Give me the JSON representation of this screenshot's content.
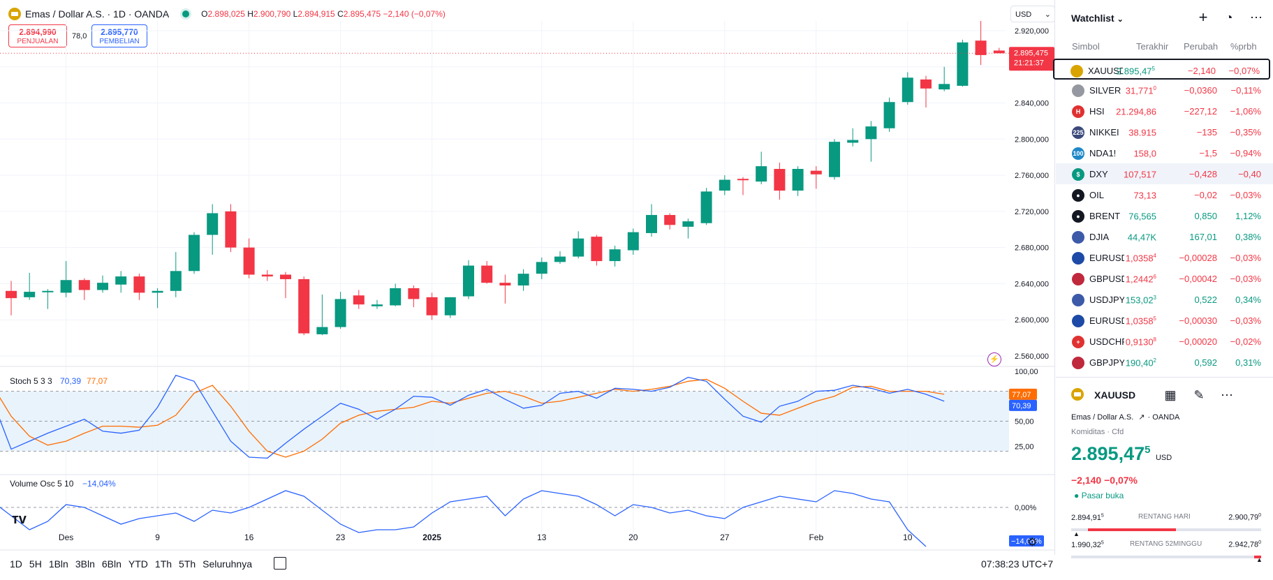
{
  "header": {
    "symbol_title": "Emas / Dollar A.S. · 1D · OANDA",
    "ohlc": {
      "o_label": "O",
      "o": "2.898,025",
      "h_label": "H",
      "h": "2.900,790",
      "l_label": "L",
      "l": "2.894,915",
      "c_label": "C",
      "c": "2.895,475",
      "chg": "−2,140 (−0,07%)"
    },
    "currency": "USD"
  },
  "trade": {
    "sell_price": "2.894,990",
    "sell_label": "PENJUALAN",
    "spread": "78,0",
    "buy_price": "2.895,770",
    "buy_label": "PEMBELIAN"
  },
  "price_axis": [
    "2.920,000",
    "2.880,000",
    "2.840,000",
    "2.800,000",
    "2.760,000",
    "2.720,000",
    "2.680,000",
    "2.640,000",
    "2.600,000",
    "2.560,000"
  ],
  "last_price": {
    "value": "2.895,475",
    "countdown": "21:21:37"
  },
  "stoch": {
    "title": "Stoch 5 3 3",
    "k": "70,39",
    "d": "77,07",
    "axis": [
      "100,00",
      "50,00",
      "25,00"
    ],
    "k_badge": "70,39",
    "d_badge": "77,07"
  },
  "volosc": {
    "title": "Volume Osc 5 10",
    "value": "−14,04%",
    "axis": "0,00%",
    "badge": "−14,04%"
  },
  "time_axis": [
    {
      "t": "Des",
      "i": 3
    },
    {
      "t": "9",
      "i": 8
    },
    {
      "t": "16",
      "i": 13
    },
    {
      "t": "23",
      "i": 18
    },
    {
      "t": "2025",
      "i": 23
    },
    {
      "t": "13",
      "i": 29
    },
    {
      "t": "20",
      "i": 34
    },
    {
      "t": "27",
      "i": 39
    },
    {
      "t": "Feb",
      "i": 44
    },
    {
      "t": "10",
      "i": 49
    }
  ],
  "timeframes": [
    "1D",
    "5H",
    "1Bln",
    "3Bln",
    "6Bln",
    "YTD",
    "1Th",
    "5Th",
    "Seluruhnya"
  ],
  "clock": "07:38:23 UTC+7",
  "chart_data": {
    "type": "candlestick",
    "ylim": [
      2560,
      2930
    ],
    "candles": [
      [
        2632,
        2643,
        2605,
        2624
      ],
      [
        2625,
        2652,
        2622,
        2631
      ],
      [
        2631,
        2634,
        2612,
        2632
      ],
      [
        2630,
        2665,
        2625,
        2644
      ],
      [
        2644,
        2646,
        2622,
        2633
      ],
      [
        2633,
        2649,
        2630,
        2641
      ],
      [
        2639,
        2654,
        2630,
        2648
      ],
      [
        2648,
        2651,
        2622,
        2630
      ],
      [
        2630,
        2635,
        2613,
        2632
      ],
      [
        2632,
        2675,
        2625,
        2654
      ],
      [
        2654,
        2697,
        2651,
        2694
      ],
      [
        2694,
        2728,
        2672,
        2718
      ],
      [
        2720,
        2728,
        2675,
        2680
      ],
      [
        2680,
        2690,
        2646,
        2650
      ],
      [
        2650,
        2655,
        2643,
        2648
      ],
      [
        2650,
        2653,
        2624,
        2645
      ],
      [
        2645,
        2648,
        2583,
        2585
      ],
      [
        2584,
        2628,
        2583,
        2592
      ],
      [
        2592,
        2631,
        2590,
        2623
      ],
      [
        2627,
        2633,
        2612,
        2617
      ],
      [
        2615,
        2622,
        2612,
        2617
      ],
      [
        2616,
        2640,
        2615,
        2635
      ],
      [
        2635,
        2638,
        2614,
        2623
      ],
      [
        2625,
        2630,
        2600,
        2605
      ],
      [
        2605,
        2625,
        2602,
        2625
      ],
      [
        2626,
        2666,
        2623,
        2660
      ],
      [
        2660,
        2665,
        2640,
        2641
      ],
      [
        2641,
        2650,
        2618,
        2638
      ],
      [
        2638,
        2656,
        2632,
        2651
      ],
      [
        2651,
        2669,
        2645,
        2664
      ],
      [
        2664,
        2676,
        2662,
        2670
      ],
      [
        2670,
        2698,
        2668,
        2690
      ],
      [
        2692,
        2694,
        2660,
        2665
      ],
      [
        2665,
        2682,
        2659,
        2678
      ],
      [
        2677,
        2701,
        2672,
        2697
      ],
      [
        2696,
        2728,
        2692,
        2716
      ],
      [
        2716,
        2718,
        2700,
        2705
      ],
      [
        2703,
        2712,
        2690,
        2709
      ],
      [
        2707,
        2746,
        2705,
        2742
      ],
      [
        2743,
        2760,
        2738,
        2755
      ],
      [
        2756,
        2758,
        2738,
        2755
      ],
      [
        2753,
        2786,
        2750,
        2770
      ],
      [
        2767,
        2774,
        2733,
        2743
      ],
      [
        2743,
        2770,
        2737,
        2767
      ],
      [
        2765,
        2770,
        2745,
        2761
      ],
      [
        2758,
        2800,
        2755,
        2797
      ],
      [
        2796,
        2812,
        2792,
        2799
      ],
      [
        2800,
        2820,
        2775,
        2814
      ],
      [
        2812,
        2846,
        2808,
        2841
      ],
      [
        2841,
        2874,
        2838,
        2868
      ],
      [
        2866,
        2870,
        2835,
        2856
      ],
      [
        2855,
        2880,
        2853,
        2861
      ],
      [
        2859,
        2910,
        2858,
        2907
      ],
      [
        2909,
        2944,
        2882,
        2893
      ],
      [
        2898,
        2901,
        2895,
        2895
      ]
    ],
    "stoch_k": [
      70,
      22,
      30,
      38,
      45,
      52,
      40,
      38,
      41,
      64,
      96,
      90,
      60,
      30,
      14,
      13,
      28,
      42,
      55,
      68,
      62,
      52,
      62,
      75,
      74,
      66,
      76,
      82,
      72,
      63,
      66,
      78,
      80,
      73,
      83,
      82,
      80,
      84,
      94,
      90,
      72,
      55,
      49,
      65,
      70,
      80,
      81,
      86,
      83,
      78,
      82,
      77,
      70
    ],
    "stoch_d": [
      85,
      55,
      35,
      26,
      30,
      38,
      45,
      45,
      44,
      46,
      56,
      78,
      86,
      65,
      40,
      20,
      14,
      20,
      32,
      48,
      56,
      60,
      62,
      64,
      70,
      68,
      73,
      78,
      80,
      75,
      68,
      70,
      74,
      78,
      82,
      80,
      82,
      85,
      90,
      92,
      83,
      70,
      58,
      56,
      63,
      70,
      75,
      84,
      85,
      80,
      80,
      80,
      77
    ],
    "volosc": [
      2,
      -3,
      -8,
      -5,
      1,
      0,
      -3,
      -6,
      -4,
      -3,
      -2,
      -5,
      -1,
      -2,
      0,
      3,
      6,
      4,
      -1,
      -6,
      -9,
      -8,
      -8,
      -7,
      -2,
      2,
      3,
      4,
      -3,
      3,
      6,
      5,
      4,
      1,
      -3,
      1,
      0,
      -2,
      -1,
      -3,
      -4,
      0,
      2,
      4,
      3,
      2,
      6,
      5,
      3,
      2,
      -8,
      -14
    ]
  },
  "watchlist": {
    "title": "Watchlist",
    "columns": [
      "Simbol",
      "Terakhir",
      "Perubah",
      "%prbh"
    ],
    "rows": [
      {
        "sym": "XAUUSD",
        "last": "2.895,47",
        "last_sup": "5",
        "chg": "−2,140",
        "pct": "−0,07%",
        "dir": "down",
        "icon": "gold",
        "c": "#d9a400"
      },
      {
        "sym": "SILVER",
        "last": "31,771",
        "last_sup": "0",
        "chg": "−0,0360",
        "pct": "−0,11%",
        "dir": "down",
        "icon": "silver",
        "c": "#9598a1"
      },
      {
        "sym": "HSI",
        "last": "21.294,86",
        "last_sup": "",
        "chg": "−227,12",
        "pct": "−1,06%",
        "dir": "down",
        "icon": "H",
        "c": "#e03131"
      },
      {
        "sym": "NIKKEI",
        "last": "38.915",
        "last_sup": "",
        "chg": "−135",
        "pct": "−0,35%",
        "dir": "down",
        "icon": "225",
        "c": "#3b4a7a"
      },
      {
        "sym": "NDA1!",
        "last": "158,0",
        "last_sup": "",
        "chg": "−1,5",
        "pct": "−0,94%",
        "dir": "down",
        "icon": "100",
        "c": "#1e88c8"
      },
      {
        "sym": "DXY",
        "last": "107,517",
        "last_sup": "",
        "chg": "−0,428",
        "pct": "−0,40",
        "dir": "down",
        "icon": "$",
        "c": "#089981"
      },
      {
        "sym": "OIL",
        "last": "73,13",
        "last_sup": "",
        "chg": "−0,02",
        "pct": "−0,03%",
        "dir": "down",
        "icon": "drop",
        "c": "#131722"
      },
      {
        "sym": "BRENT",
        "last": "76,565",
        "last_sup": "",
        "chg": "0,850",
        "pct": "1,12%",
        "dir": "up",
        "icon": "drop",
        "c": "#131722"
      },
      {
        "sym": "DJIA",
        "last": "44,47K",
        "last_sup": "",
        "chg": "167,01",
        "pct": "0,38%",
        "dir": "up",
        "icon": "us",
        "c": "#3c5aa8"
      },
      {
        "sym": "EURUSD",
        "last": "1,0358",
        "last_sup": "4",
        "chg": "−0,00028",
        "pct": "−0,03%",
        "dir": "down",
        "icon": "eu",
        "c": "#1d4aa6"
      },
      {
        "sym": "GBPUSD",
        "last": "1,2442",
        "last_sup": "6",
        "chg": "−0,00042",
        "pct": "−0,03%",
        "dir": "down",
        "icon": "gb",
        "c": "#c0283c"
      },
      {
        "sym": "USDJPY",
        "last": "153,02",
        "last_sup": "3",
        "chg": "0,522",
        "pct": "0,34%",
        "dir": "up",
        "icon": "us",
        "c": "#3c5aa8"
      },
      {
        "sym": "EURUSD",
        "last": "1,0358",
        "last_sup": "5",
        "chg": "−0,00030",
        "pct": "−0,03%",
        "dir": "down",
        "icon": "eu",
        "c": "#1d4aa6"
      },
      {
        "sym": "USDCHF",
        "last": "0,9130",
        "last_sup": "8",
        "chg": "−0,00020",
        "pct": "−0,02%",
        "dir": "down",
        "icon": "ch",
        "c": "#e03131"
      },
      {
        "sym": "GBPJPY",
        "last": "190,40",
        "last_sup": "2",
        "chg": "0,592",
        "pct": "0,31%",
        "dir": "up",
        "icon": "gb",
        "c": "#c0283c"
      }
    ]
  },
  "details": {
    "symbol": "XAUUSD",
    "name": "Emas / Dollar A.S.",
    "exchange": "OANDA",
    "category": "Komiditas · Cfd",
    "price": "2.895,47",
    "price_sup": "5",
    "currency": "USD",
    "chg": "−2,140",
    "pct": "−0,07%",
    "status": "Pasar buka",
    "day_low": "2.894,91",
    "day_low_sup": "5",
    "day_label": "RENTANG HARI",
    "day_high": "2.900,79",
    "day_high_sup": "0",
    "wk_low": "1.990,32",
    "wk_low_sup": "5",
    "wk_label": "RENTANG 52MINGGU",
    "wk_high": "2.942,78",
    "wk_high_sup": "0"
  },
  "colors": {
    "up": "#089981",
    "down": "#f23645",
    "stoch_k": "#2962ff",
    "stoch_d": "#ff6d00",
    "accent": "#2962ff"
  }
}
